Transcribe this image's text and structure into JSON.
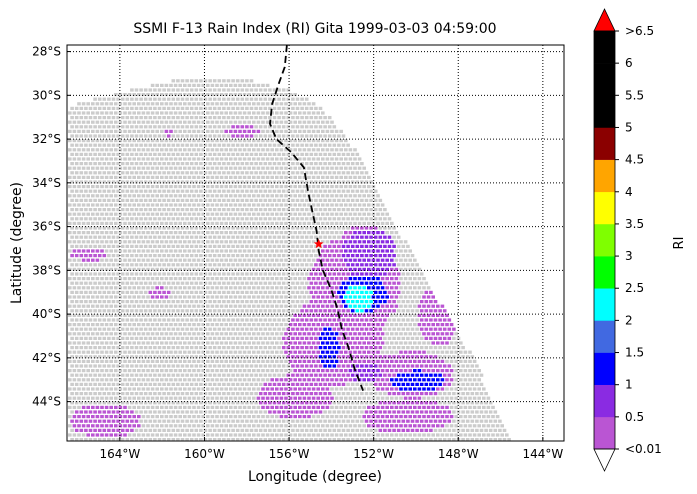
{
  "chart_data": {
    "type": "heatmap",
    "title": "SSMI F-13 Rain Index (RI) Gita 1999-03-03 04:59:00",
    "xlabel": "Longitude (degree)",
    "ylabel": "Latitude (degree)",
    "xlim": [
      -166.5,
      -143.0
    ],
    "ylim": [
      -45.8,
      -27.7
    ],
    "xticks": [
      -164,
      -160,
      -156,
      -152,
      -148,
      -144
    ],
    "xtick_labels": [
      "164°W",
      "160°W",
      "156°W",
      "152°W",
      "148°W",
      "144°W"
    ],
    "yticks": [
      -28,
      -30,
      -32,
      -34,
      -36,
      -38,
      -40,
      -42,
      -44
    ],
    "ytick_labels": [
      "28°S",
      "30°S",
      "32°S",
      "34°S",
      "36°S",
      "38°S",
      "40°S",
      "42°S",
      "44°S"
    ],
    "grid": true,
    "grid_style": "dotted",
    "colorbar": {
      "label": "RI",
      "bounds": [
        0.01,
        0.5,
        1,
        1.5,
        2,
        2.5,
        3,
        3.5,
        4,
        4.5,
        5,
        5.5,
        6,
        6.5
      ],
      "tick_labels": [
        "<0.01",
        "0.5",
        "1",
        "1.5",
        "2",
        "2.5",
        "3",
        "3.5",
        "4",
        "4.5",
        "5",
        "5.5",
        "6",
        ">6.5"
      ],
      "colors": [
        "#ba55d3",
        "#8a2be2",
        "#0000ff",
        "#4169e1",
        "#00ffff",
        "#00ff00",
        "#7fff00",
        "#ffff00",
        "#ffa500",
        "#8b0000",
        "#000000",
        "#000000",
        "#000000"
      ],
      "under_color": "#ffffff",
      "over_color": "#ff0000",
      "extend": "both"
    },
    "swath": {
      "no_rain_color": "#cccccc",
      "outline": [
        [
          -166.5,
          -30.4
        ],
        [
          -164,
          -29.8
        ],
        [
          -162,
          -29.3
        ],
        [
          -160,
          -29.1
        ],
        [
          -158,
          -29.2
        ],
        [
          -156,
          -29.7
        ],
        [
          -154.5,
          -30.5
        ],
        [
          -153,
          -32.3
        ],
        [
          -151.5,
          -35.0
        ],
        [
          -149.5,
          -38.5
        ],
        [
          -147.3,
          -42.0
        ],
        [
          -145.6,
          -45.8
        ],
        [
          -166.5,
          -45.8
        ]
      ]
    },
    "track": {
      "style": "dashed",
      "color": "#000000",
      "points": [
        [
          -156.1,
          -27.7
        ],
        [
          -156.2,
          -28.7
        ],
        [
          -156.5,
          -29.5
        ],
        [
          -156.8,
          -30.4
        ],
        [
          -156.9,
          -31.3
        ],
        [
          -156.6,
          -32.0
        ],
        [
          -155.9,
          -32.6
        ],
        [
          -155.3,
          -33.3
        ],
        [
          -155.1,
          -34.4
        ],
        [
          -154.9,
          -35.3
        ],
        [
          -154.7,
          -36.2
        ],
        [
          -154.6,
          -37.1
        ],
        [
          -154.4,
          -38.0
        ],
        [
          -154.0,
          -38.9
        ],
        [
          -153.7,
          -39.8
        ],
        [
          -153.5,
          -40.7
        ],
        [
          -153.2,
          -41.5
        ],
        [
          -152.9,
          -42.5
        ],
        [
          -152.5,
          -43.5
        ]
      ]
    },
    "storm_center": {
      "lon": -154.6,
      "lat": -36.8,
      "color": "#ff0000",
      "marker": "star"
    },
    "rain_regions": [
      {
        "lon": -153.0,
        "lat": -38.6,
        "rx": 2.2,
        "ry": 2.3,
        "ri": 0.3
      },
      {
        "lon": -154.0,
        "lat": -41.2,
        "rx": 2.4,
        "ry": 2.0,
        "ri": 0.3
      },
      {
        "lon": -152.3,
        "lat": -37.2,
        "rx": 1.3,
        "ry": 1.2,
        "ri": 0.6
      },
      {
        "lon": -152.6,
        "lat": -39.0,
        "rx": 1.2,
        "ry": 0.9,
        "ri": 1.2
      },
      {
        "lon": -152.8,
        "lat": -39.2,
        "rx": 0.7,
        "ry": 0.6,
        "ri": 2.2
      },
      {
        "lon": -154.2,
        "lat": -41.5,
        "rx": 0.5,
        "ry": 1.0,
        "ri": 1.1
      },
      {
        "lon": -150.0,
        "lat": -43.0,
        "rx": 1.3,
        "ry": 0.5,
        "ri": 1.0
      },
      {
        "lon": -150.3,
        "lat": -42.7,
        "rx": 2.0,
        "ry": 1.1,
        "ri": 0.3
      },
      {
        "lon": -152.5,
        "lat": -42.6,
        "rx": 0.8,
        "ry": 0.5,
        "ri": 0.8
      },
      {
        "lon": -155.8,
        "lat": -43.7,
        "rx": 1.8,
        "ry": 1.0,
        "ri": 0.3
      },
      {
        "lon": -150.5,
        "lat": -44.6,
        "rx": 2.2,
        "ry": 0.8,
        "ri": 0.3
      },
      {
        "lon": -149.0,
        "lat": -40.0,
        "rx": 1.0,
        "ry": 1.4,
        "ri": 0.3
      },
      {
        "lon": -152.5,
        "lat": -36.5,
        "rx": 1.0,
        "ry": 0.7,
        "ri": 0.3
      },
      {
        "lon": -165.5,
        "lat": -37.2,
        "rx": 0.9,
        "ry": 0.3,
        "ri": 0.3
      },
      {
        "lon": -162.2,
        "lat": -39.0,
        "rx": 0.5,
        "ry": 0.3,
        "ri": 0.3
      },
      {
        "lon": -164.8,
        "lat": -44.8,
        "rx": 1.7,
        "ry": 0.8,
        "ri": 0.3
      },
      {
        "lon": -158.3,
        "lat": -31.6,
        "rx": 0.8,
        "ry": 0.3,
        "ri": 0.3
      },
      {
        "lon": -161.8,
        "lat": -31.6,
        "rx": 0.3,
        "ry": 0.2,
        "ri": 0.3
      }
    ]
  }
}
